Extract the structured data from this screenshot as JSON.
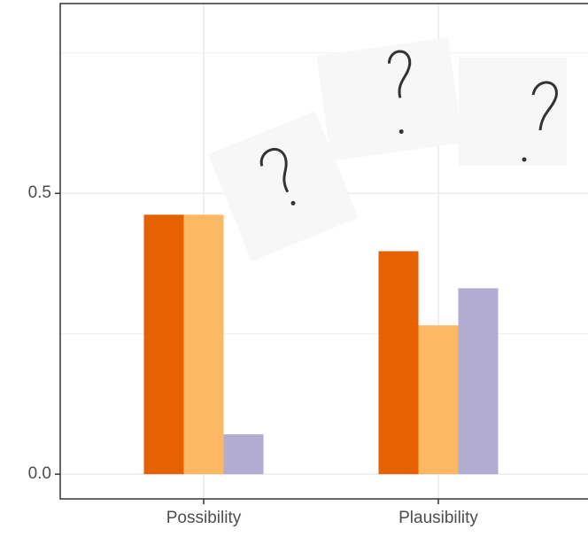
{
  "chart_data": {
    "type": "bar",
    "categories": [
      "Possibility",
      "Plausibility"
    ],
    "series": [
      {
        "color": "#e66101",
        "values": [
          0.462,
          0.397
        ]
      },
      {
        "color": "#fdb863",
        "values": [
          0.462,
          0.265
        ]
      },
      {
        "color": "#b2abd2",
        "values": [
          0.071,
          0.331
        ]
      }
    ],
    "ylim": [
      -0.044,
      0.838
    ],
    "yticks": [
      {
        "value": 0,
        "label": "0.0"
      },
      {
        "value": 0.5,
        "label": "0.5"
      }
    ],
    "grid": true
  }
}
